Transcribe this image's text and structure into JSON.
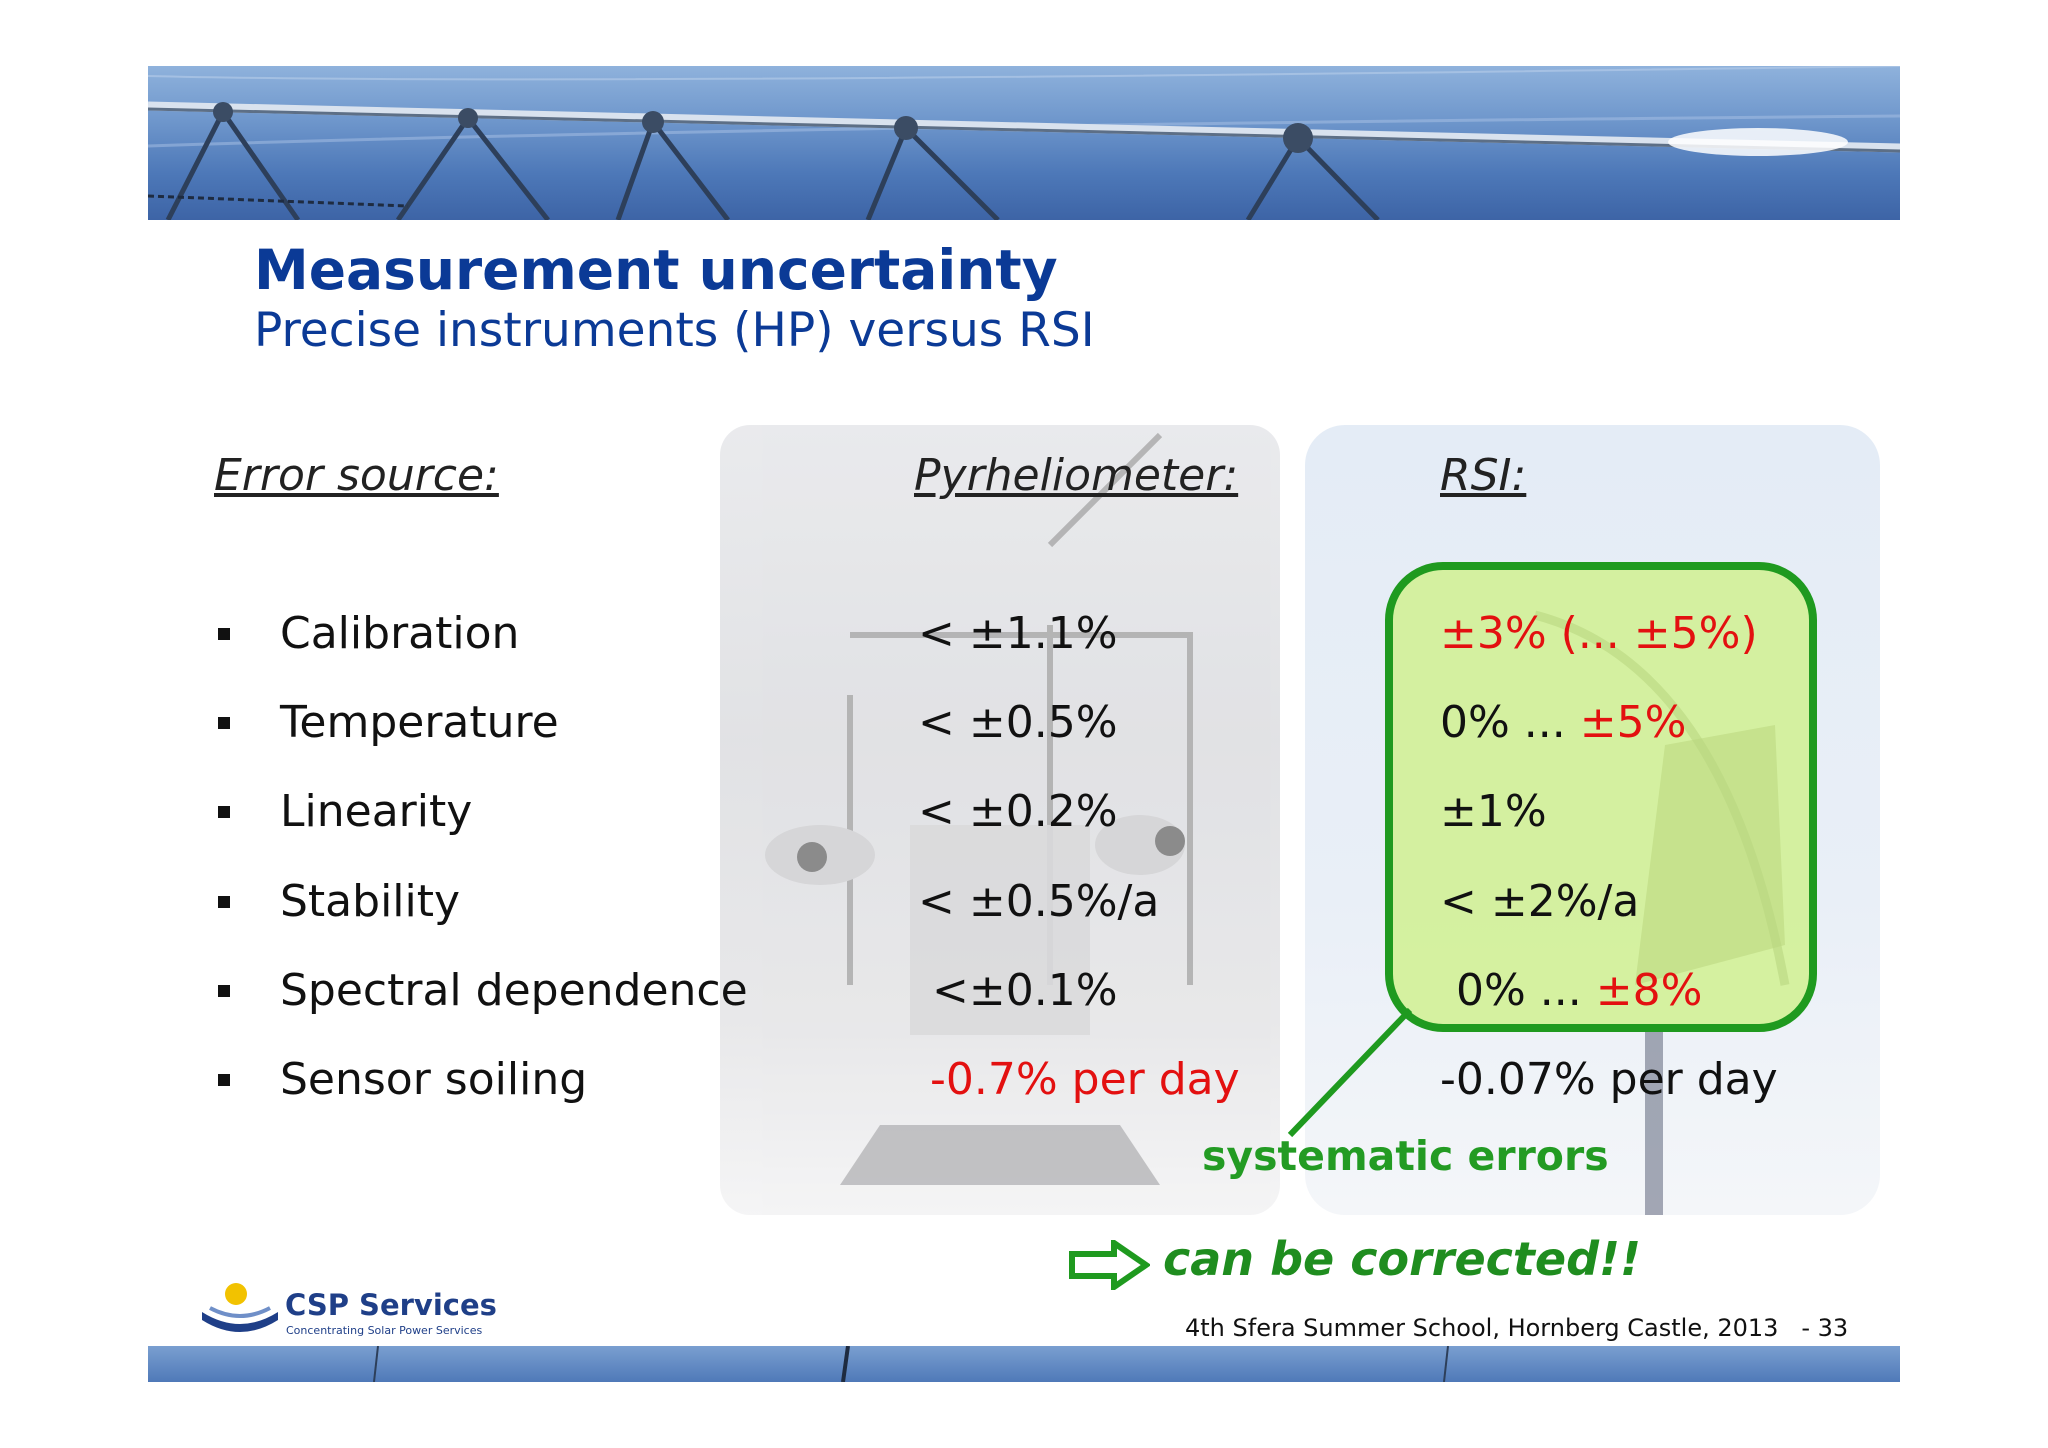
{
  "slide": {
    "title": "Measurement uncertainty",
    "subtitle": "Precise instruments (HP) versus RSI"
  },
  "table": {
    "headers": {
      "source": "Error source:",
      "pyrheliometer": "Pyrheliometer:",
      "rsi": "RSI:"
    },
    "rows": [
      {
        "source": "Calibration",
        "pyr": "< ±1.1%",
        "rsi_a": "±3%  (... ±5%)",
        "rsi_b": ""
      },
      {
        "source": "Temperature",
        "pyr": "< ±0.5%",
        "rsi_a": "0% ... ",
        "rsi_b": "±5%"
      },
      {
        "source": "Linearity",
        "pyr": "< ±0.2%",
        "rsi_a": "±1%",
        "rsi_b": ""
      },
      {
        "source": "Stability",
        "pyr": "< ±0.5%/a",
        "rsi_a": "< ±2%/a",
        "rsi_b": ""
      },
      {
        "source": "Spectral dependence",
        "pyr": "<±0.1%",
        "rsi_a": "0% ... ",
        "rsi_b": "±8%"
      },
      {
        "source": "Sensor soiling",
        "pyr": "-0.7% per day",
        "rsi_a": "-0.07% per day",
        "rsi_b": ""
      }
    ]
  },
  "callout": {
    "systematic": "systematic errors",
    "corrected": "can be corrected!!"
  },
  "logo": {
    "name": "CSP Services",
    "tagline": "Concentrating Solar Power Services"
  },
  "footer": {
    "text": "4th Sfera Summer School, Hornberg Castle, 2013",
    "page": "- 33"
  },
  "colors": {
    "title_blue": "#0b3a96",
    "highlight_red": "#e31010",
    "callout_green": "#1f9a1f",
    "box_fill": "#d0f08c"
  }
}
